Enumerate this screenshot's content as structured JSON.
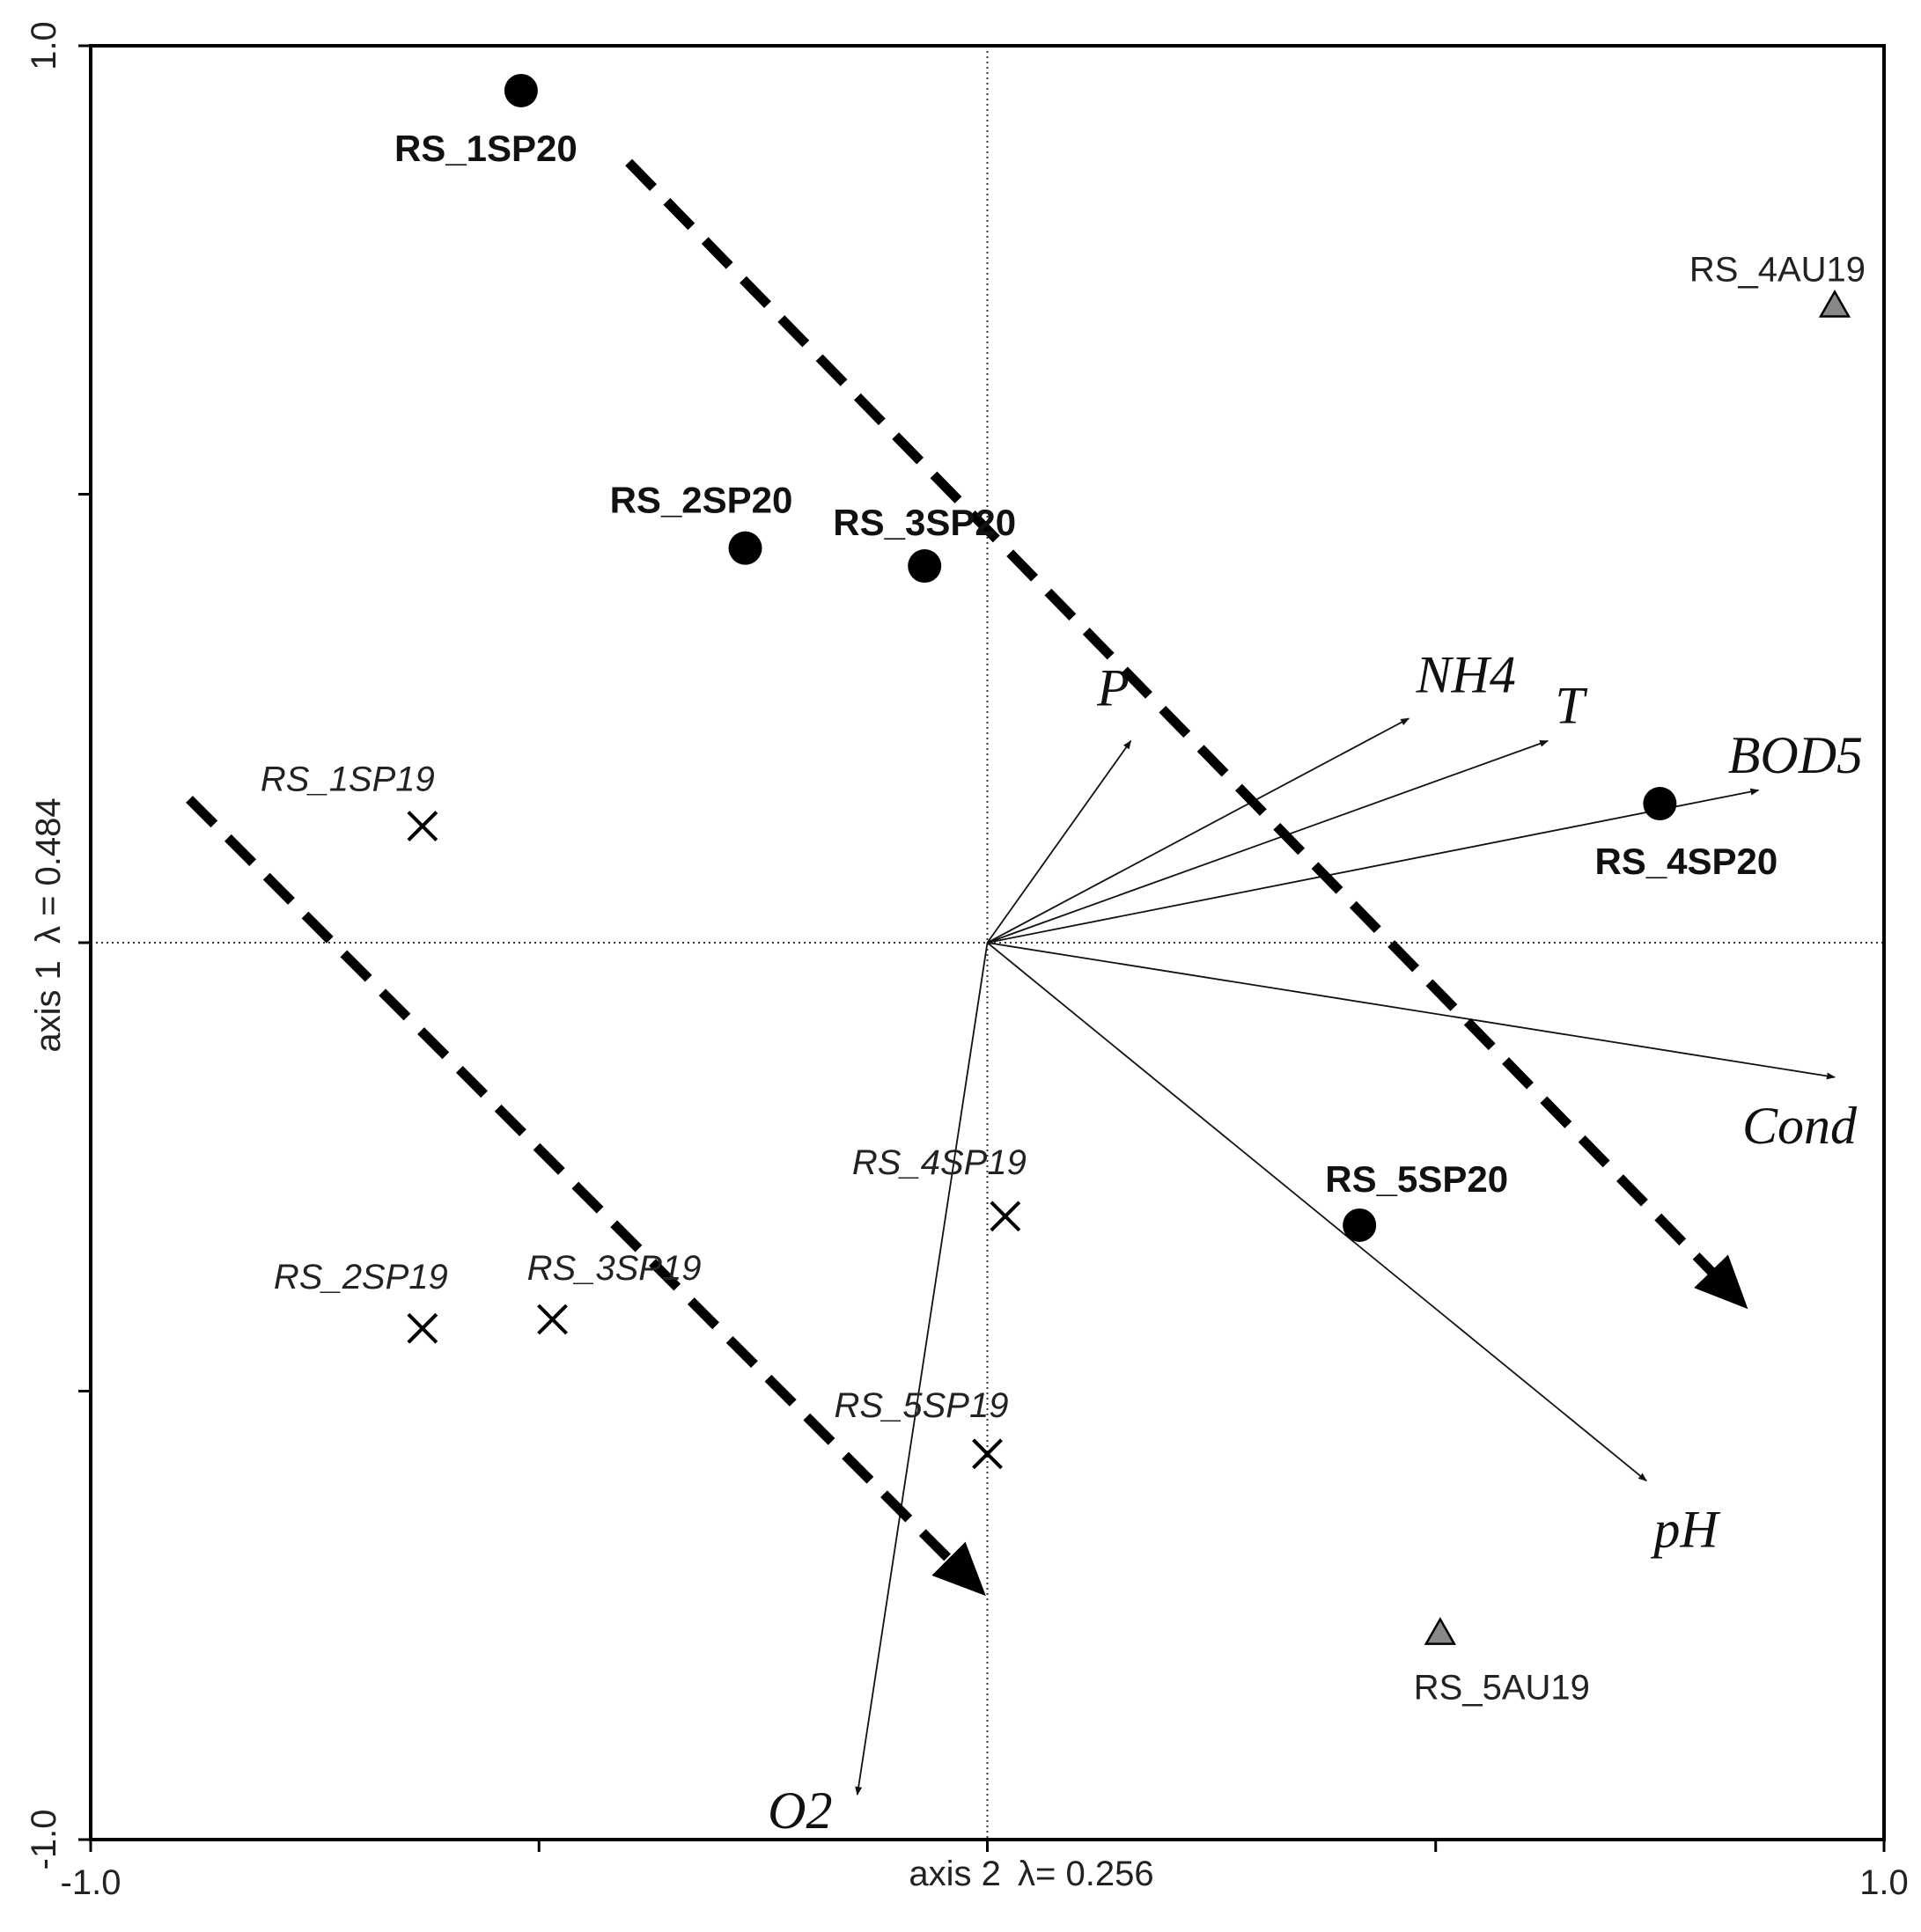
{
  "chart_data": {
    "type": "scatter",
    "xlim": [
      -1.0,
      1.0
    ],
    "ylim": [
      -1.0,
      1.0
    ],
    "x_ticks": [
      -1.0,
      1.0
    ],
    "y_ticks": [
      -1.0,
      1.0
    ],
    "x_tick_labels": [
      "-1.0",
      "1.0"
    ],
    "y_tick_labels": [
      "-1.0",
      "1.0"
    ],
    "xlabel_prefix": "axis 2",
    "xlabel_lambda": "λ= 0.256",
    "ylabel_prefix": "axis 1",
    "ylabel_lambda": "λ = 0.484",
    "points": [
      {
        "name": "RS_1SP20",
        "group": "SP20",
        "x": -0.52,
        "y": 0.95
      },
      {
        "name": "RS_2SP20",
        "group": "SP20",
        "x": -0.27,
        "y": 0.44
      },
      {
        "name": "RS_3SP20",
        "group": "SP20",
        "x": -0.07,
        "y": 0.42
      },
      {
        "name": "RS_4SP20",
        "group": "SP20",
        "x": 0.75,
        "y": 0.155
      },
      {
        "name": "RS_5SP20",
        "group": "SP20",
        "x": 0.415,
        "y": -0.315
      },
      {
        "name": "RS_1SP19",
        "group": "SP19",
        "x": -0.63,
        "y": 0.13
      },
      {
        "name": "RS_2SP19",
        "group": "SP19",
        "x": -0.63,
        "y": -0.43
      },
      {
        "name": "RS_3SP19",
        "group": "SP19",
        "x": -0.485,
        "y": -0.42
      },
      {
        "name": "RS_4SP19",
        "group": "SP19",
        "x": 0.02,
        "y": -0.305
      },
      {
        "name": "RS_5SP19",
        "group": "SP19",
        "x": 0.0,
        "y": -0.57
      },
      {
        "name": "RS_4AU19",
        "group": "AU19",
        "x": 0.945,
        "y": 0.71
      },
      {
        "name": "RS_5AU19",
        "group": "AU19",
        "x": 0.505,
        "y": -0.77
      }
    ],
    "env_vectors": [
      {
        "name": "P",
        "x": 0.16,
        "y": 0.225
      },
      {
        "name": "NH4",
        "x": 0.47,
        "y": 0.25
      },
      {
        "name": "T",
        "x": 0.625,
        "y": 0.225
      },
      {
        "name": "BOD5",
        "x": 0.86,
        "y": 0.17
      },
      {
        "name": "Cond",
        "x": 0.945,
        "y": -0.15
      },
      {
        "name": "pH",
        "x": 0.735,
        "y": -0.6
      },
      {
        "name": "O2",
        "x": -0.145,
        "y": -0.95
      }
    ],
    "trend_arrows": [
      {
        "from": [
          -0.4,
          0.87
        ],
        "to": [
          0.84,
          -0.4
        ]
      },
      {
        "from": [
          -0.89,
          0.16
        ],
        "to": [
          -0.01,
          -0.72
        ]
      }
    ]
  }
}
